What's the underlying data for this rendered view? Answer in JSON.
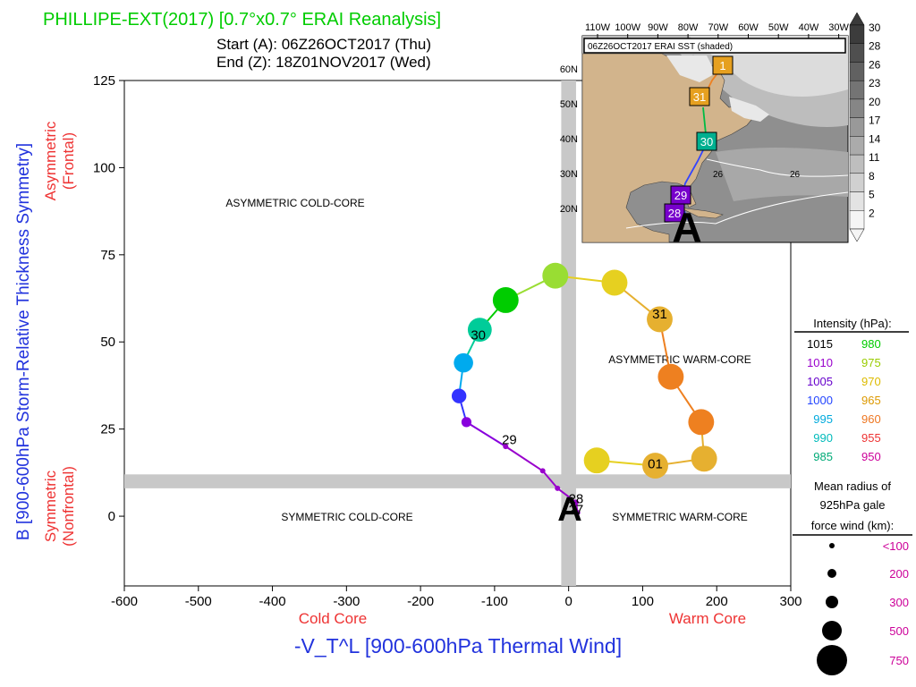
{
  "header": {
    "title": "PHILLIPE-EXT(2017) [0.7°x0.7° ERAI Reanalysis]",
    "start": "Start (A): 06Z26OCT2017 (Thu)",
    "end": "End (Z): 18Z01NOV2017 (Wed)"
  },
  "colors": {
    "title": "#00cc00",
    "axis_title": "#2233dd",
    "red_label": "#ee3333",
    "magenta": "#cc0099",
    "gray_band": "#c8c8c8",
    "track": "#6600aa",
    "map_land": "#d2b48c"
  },
  "chart_data": {
    "type": "scatter",
    "xlabel": "-V_T^L [900-600hPa Thermal Wind]",
    "ylabel": "B [900-600hPa Storm-Relative Thickness Symmetry]",
    "xlim": [
      -600,
      300
    ],
    "ylim": [
      -20,
      125
    ],
    "xticks": [
      -600,
      -500,
      -400,
      -300,
      -200,
      -100,
      0,
      100,
      200,
      300
    ],
    "yticks": [
      0,
      25,
      50,
      75,
      100,
      125
    ],
    "x_left_label": "Cold Core",
    "x_right_label": "Warm Core",
    "y_top_label": [
      "Asymmetric",
      "(Frontal)"
    ],
    "y_bottom_label": [
      "Symmetric",
      "(Nonfrontal)"
    ],
    "quadrants": {
      "top_left": "ASYMMETRIC COLD-CORE",
      "top_right": "ASYMMETRIC WARM-CORE",
      "bottom_left": "SYMMETRIC COLD-CORE",
      "bottom_right": "SYMMETRIC WARM-CORE"
    },
    "bands": {
      "x": [
        -10,
        10
      ],
      "y": [
        8,
        12
      ]
    },
    "start_marker": "A",
    "track": [
      {
        "x": 12,
        "y": 1,
        "size": 1,
        "color": "#9900cc"
      },
      {
        "x": 10,
        "y": 4,
        "size": 1,
        "color": "#9900cc"
      },
      {
        "x": -15,
        "y": 8,
        "size": 1,
        "color": "#9900cc"
      },
      {
        "x": -35,
        "y": 13,
        "size": 1,
        "color": "#9900cc"
      },
      {
        "x": -85,
        "y": 20,
        "size": 1,
        "color": "#9900cc"
      },
      {
        "x": -138,
        "y": 27,
        "size": 1.5,
        "color": "#8800dd"
      },
      {
        "x": -148,
        "y": 34.5,
        "size": 2,
        "color": "#3333ff"
      },
      {
        "x": -142,
        "y": 44,
        "size": 2.5,
        "color": "#00aaee"
      },
      {
        "x": -120,
        "y": 53.5,
        "size": 3,
        "color": "#00cc99"
      },
      {
        "x": -85,
        "y": 62,
        "size": 3.2,
        "color": "#00cc00"
      },
      {
        "x": -18,
        "y": 69,
        "size": 3.2,
        "color": "#99dd33"
      },
      {
        "x": 62,
        "y": 67,
        "size": 3.2,
        "color": "#e6d020"
      },
      {
        "x": 123,
        "y": 56.5,
        "size": 3.2,
        "color": "#e6b030"
      },
      {
        "x": 138,
        "y": 40,
        "size": 3.2,
        "color": "#ee8020"
      },
      {
        "x": 179,
        "y": 27,
        "size": 3.2,
        "color": "#ee8020"
      },
      {
        "x": 183,
        "y": 16.5,
        "size": 3.2,
        "color": "#e6b030"
      },
      {
        "x": 117,
        "y": 14.5,
        "size": 3.2,
        "color": "#e6b030"
      },
      {
        "x": 38,
        "y": 16,
        "size": 3.2,
        "color": "#e6d020"
      }
    ],
    "day_labels": [
      {
        "text": "29",
        "x": -80,
        "y": 22
      },
      {
        "text": "30",
        "x": -122,
        "y": 52
      },
      {
        "text": "31",
        "x": 123,
        "y": 58
      },
      {
        "text": "01",
        "x": 117,
        "y": 15
      },
      {
        "text": "28",
        "x": 10,
        "y": 5
      },
      {
        "text": "27",
        "x": 10,
        "y": 2
      }
    ]
  },
  "legend": {
    "intensity_title": "Intensity (hPa):",
    "intensity": [
      {
        "a": "1015",
        "a_color": "#000000",
        "b": "980",
        "b_color": "#00cc00"
      },
      {
        "a": "1010",
        "a_color": "#9900cc",
        "b": "975",
        "b_color": "#99cc00"
      },
      {
        "a": "1005",
        "a_color": "#6600cc",
        "b": "970",
        "b_color": "#ddbb00"
      },
      {
        "a": "1000",
        "a_color": "#2244ff",
        "b": "965",
        "b_color": "#dd9900"
      },
      {
        "a": "995",
        "a_color": "#00aadd",
        "b": "960",
        "b_color": "#ee7722"
      },
      {
        "a": "990",
        "a_color": "#00bbbb",
        "b": "955",
        "b_color": "#ee3333"
      },
      {
        "a": "985",
        "a_color": "#00aa77",
        "b": "950",
        "b_color": "#cc0099"
      }
    ],
    "radius_title": [
      "Mean radius of",
      "925hPa gale",
      "force wind (km):"
    ],
    "radius": [
      {
        "label": "<100",
        "r": 3
      },
      {
        "label": "200",
        "r": 5
      },
      {
        "label": "300",
        "r": 7
      },
      {
        "label": "500",
        "r": 11
      },
      {
        "label": "750",
        "r": 17
      }
    ]
  },
  "map": {
    "title": "06Z26OCT2017 ERAI SST (shaded)",
    "lon_labels": [
      "110W",
      "100W",
      "90W",
      "80W",
      "70W",
      "60W",
      "50W",
      "40W",
      "30W"
    ],
    "lat_labels": [
      "60N",
      "50N",
      "40N",
      "30N",
      "20N"
    ],
    "sst_ticks": [
      "30",
      "28",
      "26",
      "23",
      "20",
      "17",
      "14",
      "11",
      "8",
      "5",
      "2"
    ],
    "contour_labels": [
      "26",
      "26"
    ],
    "track_boxes": [
      {
        "text": "1",
        "color": "#e6a020"
      },
      {
        "text": "31",
        "color": "#e6a020"
      },
      {
        "text": "30",
        "color": "#00b090"
      },
      {
        "text": "29",
        "color": "#7700cc"
      },
      {
        "text": "28",
        "color": "#7700cc"
      }
    ],
    "start_marker": "A"
  }
}
